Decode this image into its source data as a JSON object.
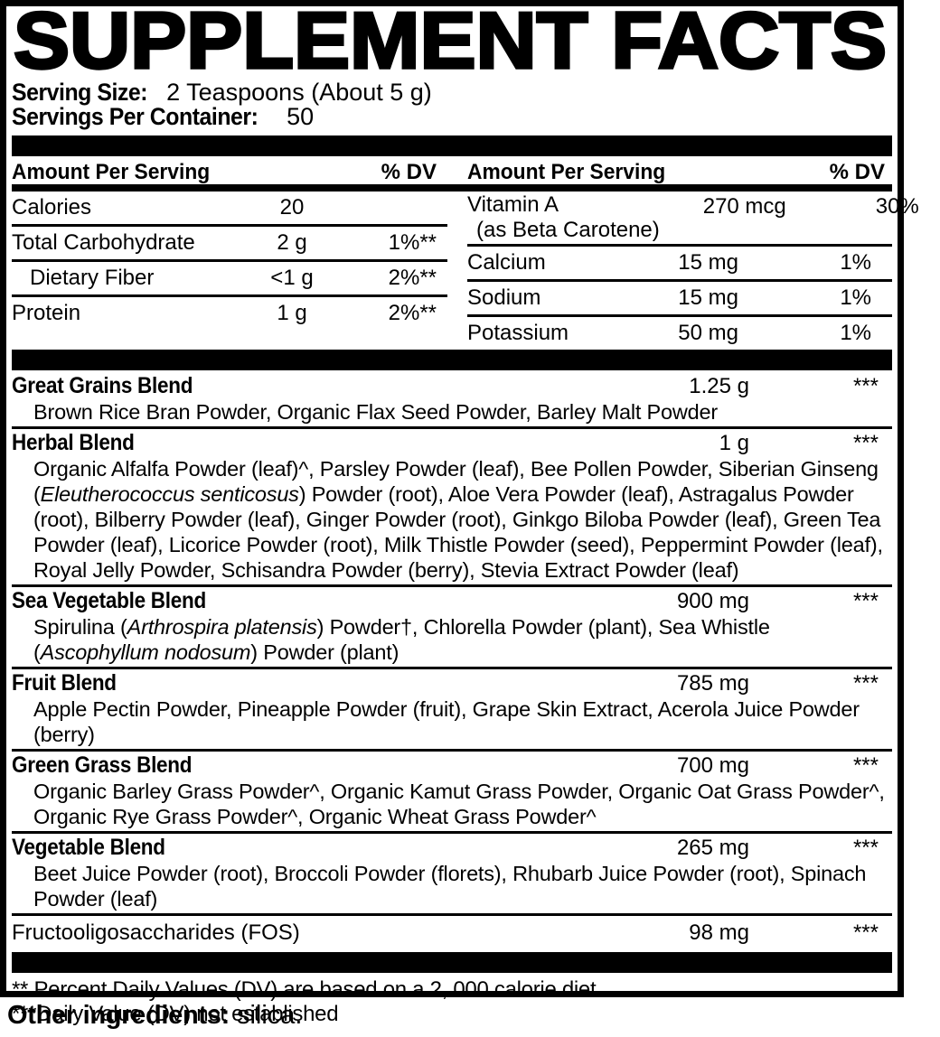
{
  "colors": {
    "ink": "#000000",
    "background": "#ffffff"
  },
  "label": {
    "title": "SUPPLEMENT FACTS",
    "serving_size_label": "Serving Size:",
    "serving_size_value": "2 Teaspoons (About 5 g)",
    "servings_per_container_label": "Servings Per Container:",
    "servings_per_container_value": "50",
    "column_header_amount": "Amount Per Serving",
    "column_header_dv": "% DV",
    "nutrition_left": [
      {
        "name": "Calories",
        "amount": "20",
        "dv": "",
        "indent": false
      },
      {
        "name": "Total Carbohydrate",
        "amount": "2 g",
        "dv": "1%**",
        "indent": false
      },
      {
        "name": "Dietary Fiber",
        "amount": "<1 g",
        "dv": "2%**",
        "indent": true
      },
      {
        "name": "Protein",
        "amount": "1 g",
        "dv": "2%**",
        "indent": false
      }
    ],
    "nutrition_right": [
      {
        "name": "Vitamin A",
        "name2": "(as Beta Carotene)",
        "amount": "270 mcg",
        "dv": "30%"
      },
      {
        "name": "Calcium",
        "name2": "",
        "amount": "15 mg",
        "dv": "1%"
      },
      {
        "name": "Sodium",
        "name2": "",
        "amount": "15 mg",
        "dv": "1%"
      },
      {
        "name": "Potassium",
        "name2": "",
        "amount": "50 mg",
        "dv": "1%"
      }
    ],
    "blends": [
      {
        "name": "Great Grains Blend",
        "amount": "1.25 g",
        "dv": "***",
        "bold": true,
        "ingredients": "Brown Rice Bran Powder, Organic Flax Seed Powder, Barley Malt Powder"
      },
      {
        "name": "Herbal Blend",
        "amount": "1 g",
        "dv": "***",
        "bold": true,
        "ingredients": "Organic Alfalfa Powder (leaf)^, Parsley Powder (leaf), Bee Pollen Powder, Siberian Ginseng (*Eleutherococcus senticosus*) Powder (root), Aloe Vera Powder (leaf), Astragalus Powder (root), Bilberry Powder (leaf), Ginger Powder (root), Ginkgo Biloba Powder (leaf), Green Tea Powder (leaf), Licorice Powder (root), Milk Thistle Powder (seed), Peppermint Powder (leaf), Royal Jelly Powder, Schisandra Powder (berry), Stevia Extract Powder (leaf)"
      },
      {
        "name": "Sea Vegetable Blend",
        "amount": "900 mg",
        "dv": "***",
        "bold": true,
        "ingredients": "Spirulina (*Arthrospira platensis*) Powder†, Chlorella Powder (plant), Sea Whistle (*Ascophyllum nodosum*) Powder (plant)"
      },
      {
        "name": "Fruit Blend",
        "amount": "785 mg",
        "dv": "***",
        "bold": true,
        "ingredients": "Apple Pectin Powder, Pineapple Powder (fruit), Grape Skin Extract, Acerola Juice Powder (berry)"
      },
      {
        "name": "Green Grass Blend",
        "amount": "700 mg",
        "dv": "***",
        "bold": true,
        "ingredients": "Organic Barley Grass Powder^, Organic Kamut Grass Powder, Organic Oat Grass Powder^, Organic Rye Grass Powder^, Organic Wheat Grass Powder^"
      },
      {
        "name": "Vegetable Blend",
        "amount": "265 mg",
        "dv": "***",
        "bold": true,
        "ingredients": "Beet Juice Powder (root), Broccoli Powder (florets), Rhubarb Juice Powder (root), Spinach Powder (leaf)"
      },
      {
        "name": "Fructooligosaccharides (FOS)",
        "amount": "98 mg",
        "dv": "***",
        "bold": false,
        "ingredients": ""
      }
    ],
    "footnotes": [
      "** Percent Daily Values (DV) are based on a 2, 000 calorie diet",
      "***Daily Value (DV) not established"
    ],
    "other_ingredients_label": "Other ingredients:",
    "other_ingredients_value": "silica."
  }
}
